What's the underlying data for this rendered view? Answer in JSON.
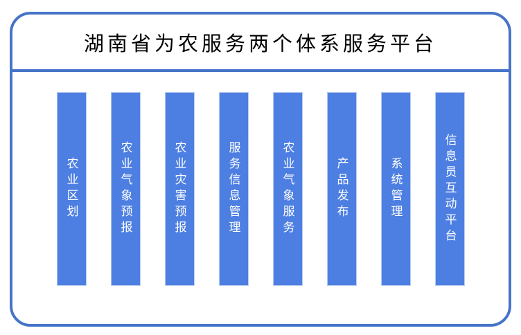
{
  "title": "湖南省为农服务两个体系服务平台",
  "modules": [
    {
      "label": "农业区划"
    },
    {
      "label": "农业气象预报"
    },
    {
      "label": "农业灾害预报"
    },
    {
      "label": "服务信息管理"
    },
    {
      "label": "农业气象服务"
    },
    {
      "label": "产品发布"
    },
    {
      "label": "系统管理"
    },
    {
      "label": "信息员互动平台"
    }
  ],
  "colors": {
    "frame_border": "#4674c8",
    "bar_fill": "#4d7fe2",
    "bar_border": "#b9cdf0",
    "bar_text": "#ffffff",
    "title_color": "#000000"
  }
}
